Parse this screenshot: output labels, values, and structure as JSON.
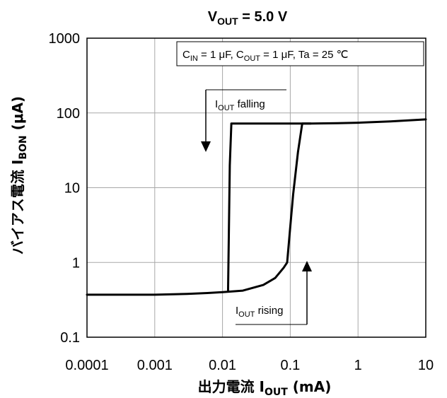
{
  "chart_data": {
    "type": "line",
    "title": {
      "main": "V",
      "sub": "OUT",
      "tail": " = 5.0 V"
    },
    "xlabel": {
      "main": "出力電流  I",
      "sub": "OUT",
      "tail": " (mA)"
    },
    "ylabel": {
      "main": "バイアス電流  I",
      "sub": "BON",
      "tail": " (μA)"
    },
    "x_scale": "log",
    "y_scale": "log",
    "xlim": [
      0.0001,
      10
    ],
    "ylim": [
      0.1,
      1000
    ],
    "x_ticks": [
      0.0001,
      0.001,
      0.01,
      0.1,
      1,
      10
    ],
    "x_tick_labels": [
      "0.0001",
      "0.001",
      "0.01",
      "0.1",
      "1",
      "10"
    ],
    "y_ticks": [
      0.1,
      1,
      10,
      100,
      1000
    ],
    "y_tick_labels": [
      "0.1",
      "1",
      "10",
      "100",
      "1000"
    ],
    "grid": true,
    "conditions": {
      "parts": [
        {
          "t": "C",
          "s": ""
        },
        {
          "t": "",
          "s": "IN"
        },
        {
          "t": " = 1 μF, C",
          "s": ""
        },
        {
          "t": "",
          "s": "OUT"
        },
        {
          "t": " = 1 μF, Ta = 25 ℃",
          "s": ""
        }
      ]
    },
    "annotations": [
      {
        "main": "I",
        "sub": "OUT",
        "tail": " falling",
        "arrow": "down"
      },
      {
        "main": "I",
        "sub": "OUT",
        "tail": " rising",
        "arrow": "up"
      }
    ],
    "series": [
      {
        "x": [
          0.0001,
          0.0003,
          0.001,
          0.003,
          0.006,
          0.01,
          0.02,
          0.04,
          0.06,
          0.08,
          0.09,
          0.1,
          0.11,
          0.13,
          0.15,
          0.2,
          0.5,
          1,
          3,
          10
        ],
        "values": [
          0.37,
          0.37,
          0.37,
          0.38,
          0.39,
          0.4,
          0.42,
          0.5,
          0.62,
          0.85,
          1.0,
          3.0,
          8.0,
          30,
          72,
          72,
          73,
          74,
          77,
          82
        ]
      },
      {
        "x": [
          0.0121,
          0.0121,
          0.0128,
          0.0135,
          0.2
        ],
        "values": [
          0.41,
          0.45,
          20,
          72,
          72
        ]
      }
    ]
  }
}
